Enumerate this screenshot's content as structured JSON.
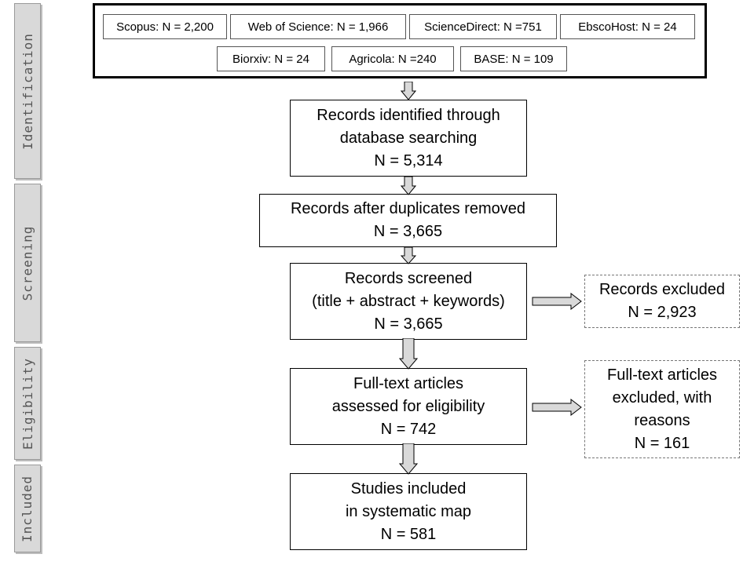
{
  "stages": [
    "Identification",
    "Screening",
    "Eligibility",
    "Included"
  ],
  "databases": {
    "row1": [
      "Scopus: N = 2,200",
      "Web of Science: N = 1,966",
      "ScienceDirect: N =751",
      "EbscoHost: N = 24"
    ],
    "row2": [
      "Biorxiv: N = 24",
      "Agricola: N =240",
      "BASE: N = 109"
    ]
  },
  "flow": {
    "identified": [
      "Records identified through",
      "database searching",
      "N = 5,314"
    ],
    "deduplicated": [
      "Records after duplicates removed",
      "N = 3,665"
    ],
    "screened": [
      "Records screened",
      "(title + abstract + keywords)",
      "N = 3,665"
    ],
    "fulltext": [
      "Full-text articles",
      "assessed for eligibility",
      "N = 742"
    ],
    "included": [
      "Studies included",
      "in systematic map",
      "N = 581"
    ]
  },
  "excluded": {
    "screening": [
      "Records excluded",
      "N = 2,923"
    ],
    "fulltext": [
      "Full-text articles",
      "excluded, with",
      "reasons",
      "N = 161"
    ]
  },
  "colors": {
    "tab_fill": "#d9d9d9",
    "arrow_fill": "#d9d9d9",
    "stroke": "#000000"
  }
}
